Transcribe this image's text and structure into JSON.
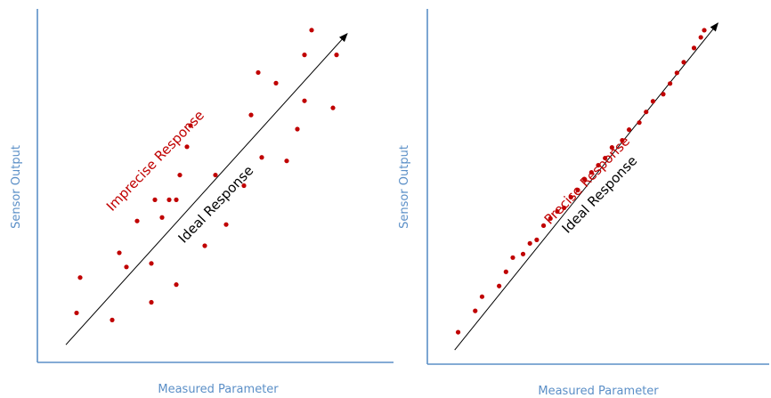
{
  "colors": {
    "axis": "#5b8fc7",
    "points": "#c00000",
    "ideal_line": "#000000",
    "imprecise_label": "#c00000",
    "ideal_label": "#000000"
  },
  "chart_data": [
    {
      "type": "scatter",
      "title": "",
      "xlabel": "Measured Parameter",
      "ylabel": "Sensor Output",
      "xlim": [
        0,
        100
      ],
      "ylim": [
        0,
        100
      ],
      "grid": false,
      "series": [
        {
          "name": "Imprecise Response",
          "points": [
            [
              11,
              14
            ],
            [
              12,
              24
            ],
            [
              21,
              12
            ],
            [
              23,
              31
            ],
            [
              25,
              27
            ],
            [
              28,
              40
            ],
            [
              32,
              17
            ],
            [
              32,
              28
            ],
            [
              33,
              46
            ],
            [
              35,
              41
            ],
            [
              37,
              46
            ],
            [
              39,
              22
            ],
            [
              39,
              46
            ],
            [
              40,
              53
            ],
            [
              42,
              61
            ],
            [
              43,
              67
            ],
            [
              47,
              33
            ],
            [
              50,
              53
            ],
            [
              53,
              39
            ],
            [
              58,
              50
            ],
            [
              60,
              70
            ],
            [
              62,
              82
            ],
            [
              63,
              58
            ],
            [
              67,
              79
            ],
            [
              70,
              57
            ],
            [
              73,
              66
            ],
            [
              75,
              74
            ],
            [
              75,
              87
            ],
            [
              77,
              94
            ],
            [
              83,
              72
            ],
            [
              84,
              87
            ]
          ]
        },
        {
          "name": "Ideal Response",
          "line": [
            [
              8,
              5
            ],
            [
              87,
              93
            ]
          ]
        }
      ]
    },
    {
      "type": "scatter",
      "title": "",
      "xlabel": "Measured Parameter",
      "ylabel": "Sensor Output",
      "xlim": [
        0,
        100
      ],
      "ylim": [
        0,
        100
      ],
      "grid": false,
      "series": [
        {
          "name": "Precise Response",
          "points": [
            [
              9,
              9
            ],
            [
              14,
              15
            ],
            [
              16,
              19
            ],
            [
              21,
              22
            ],
            [
              23,
              26
            ],
            [
              25,
              30
            ],
            [
              28,
              31
            ],
            [
              30,
              34
            ],
            [
              32,
              35
            ],
            [
              34,
              39
            ],
            [
              36,
              41
            ],
            [
              38,
              43
            ],
            [
              40,
              44
            ],
            [
              42,
              47
            ],
            [
              44,
              49
            ],
            [
              46,
              52
            ],
            [
              48,
              54
            ],
            [
              50,
              56
            ],
            [
              52,
              58
            ],
            [
              54,
              61
            ],
            [
              57,
              63
            ],
            [
              59,
              66
            ],
            [
              62,
              68
            ],
            [
              64,
              71
            ],
            [
              66,
              74
            ],
            [
              69,
              76
            ],
            [
              71,
              79
            ],
            [
              73,
              82
            ],
            [
              75,
              85
            ],
            [
              78,
              89
            ],
            [
              80,
              92
            ],
            [
              81,
              94
            ]
          ]
        },
        {
          "name": "Ideal Response",
          "line": [
            [
              8,
              4
            ],
            [
              85,
              96
            ]
          ]
        }
      ]
    }
  ]
}
